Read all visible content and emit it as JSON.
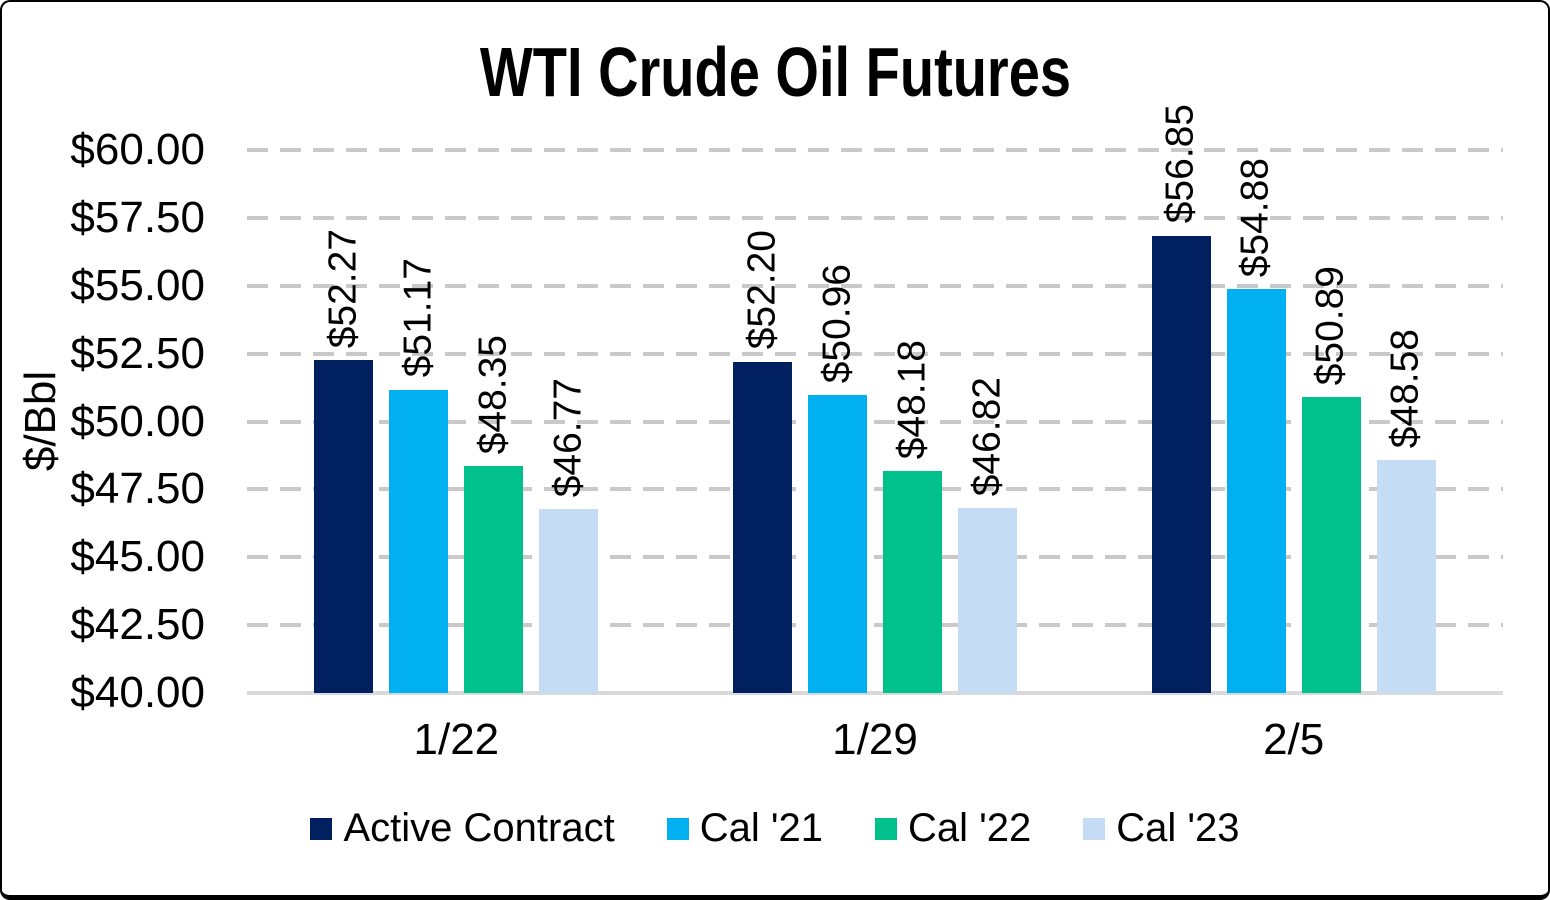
{
  "chart_data": {
    "type": "bar",
    "title": "WTI Crude Oil Futures",
    "ylabel": "$/Bbl",
    "categories": [
      "1/22",
      "1/29",
      "2/5"
    ],
    "series": [
      {
        "name": "Active Contract",
        "color": "#002060",
        "values": [
          52.27,
          52.2,
          56.85
        ],
        "labels": [
          "$52.27",
          "$52.20",
          "$56.85"
        ]
      },
      {
        "name": "Cal '21",
        "color": "#00B0F0",
        "values": [
          51.17,
          50.96,
          54.88
        ],
        "labels": [
          "$51.17",
          "$50.96",
          "$54.88"
        ]
      },
      {
        "name": "Cal '22",
        "color": "#00C08B",
        "values": [
          48.35,
          48.18,
          50.89
        ],
        "labels": [
          "$48.35",
          "$48.18",
          "$50.89"
        ]
      },
      {
        "name": "Cal '23",
        "color": "#C5DDF4",
        "values": [
          46.77,
          46.82,
          48.58
        ],
        "labels": [
          "$46.77",
          "$46.82",
          "$48.58"
        ]
      }
    ],
    "y_axis": {
      "min": 40,
      "max": 60,
      "ticks": [
        {
          "label": "$60.00",
          "value": 60
        },
        {
          "label": "$57.50",
          "value": 57.5
        },
        {
          "label": "$55.00",
          "value": 55
        },
        {
          "label": "$52.50",
          "value": 52.5
        },
        {
          "label": "$50.00",
          "value": 50
        },
        {
          "label": "$47.50",
          "value": 47.5
        },
        {
          "label": "$45.00",
          "value": 45
        },
        {
          "label": "$42.50",
          "value": 42.5
        },
        {
          "label": "$40.00",
          "value": 40
        }
      ]
    },
    "legend_position": "bottom",
    "grid": "dashed-horizontal",
    "colors": {
      "gridline": "#C9C9C9",
      "axis_line": "#D9D9D9",
      "text": "#000000",
      "background": "#FFFFFF",
      "frame": "#000000"
    }
  }
}
